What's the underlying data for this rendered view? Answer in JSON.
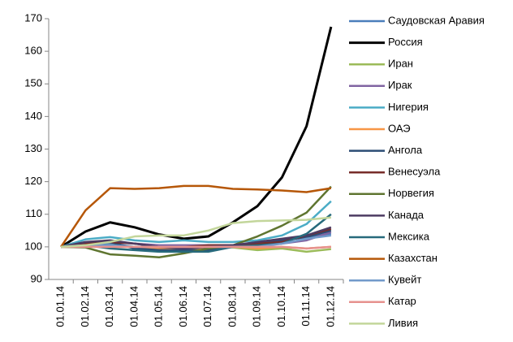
{
  "chart_data": {
    "type": "line",
    "categories": [
      "01.01.14",
      "01.02.14",
      "01.03.14",
      "01.04.14",
      "01.05.14",
      "01.06.14",
      "01.07.14",
      "01.08.14",
      "01.09.14",
      "01.10.14",
      "01.11.14",
      "01.12.14"
    ],
    "ylim": [
      90,
      170
    ],
    "yticks": [
      90,
      100,
      110,
      120,
      130,
      140,
      150,
      160,
      170
    ],
    "grid": false,
    "legend": "right",
    "series": [
      {
        "name": "Саудовская Аравия",
        "color": "#4a7ebb",
        "values": [
          100,
          101,
          101,
          100,
          100,
          100,
          100,
          100,
          101,
          102,
          103,
          104
        ]
      },
      {
        "name": "Россия",
        "color": "#000000",
        "values": [
          100,
          104.7,
          107.5,
          106,
          103.8,
          102.5,
          103.2,
          107.5,
          112.5,
          121.3,
          137,
          167.5
        ]
      },
      {
        "name": "Иран",
        "color": "#9bbb59",
        "values": [
          100,
          100.2,
          100.5,
          100,
          99.5,
          100,
          100,
          99.8,
          99,
          99.5,
          98.5,
          99.3
        ]
      },
      {
        "name": "Ирак",
        "color": "#8064a2",
        "values": [
          100,
          101,
          101.5,
          101,
          100.5,
          100.5,
          100.5,
          100.5,
          100.5,
          101,
          102,
          104.5
        ]
      },
      {
        "name": "Нигерия",
        "color": "#4bacc6",
        "values": [
          100,
          102.3,
          103,
          102,
          101.5,
          102,
          101.5,
          101.5,
          102,
          103.5,
          107,
          114
        ]
      },
      {
        "name": "ОАЭ",
        "color": "#f79646",
        "values": [
          100,
          100,
          100,
          100,
          99.5,
          99.5,
          99.5,
          100,
          99.5,
          100,
          99.5,
          100
        ]
      },
      {
        "name": "Ангола",
        "color": "#2c4d75",
        "values": [
          100,
          101,
          101.5,
          99.5,
          99,
          99,
          99,
          100,
          101,
          102,
          103,
          105
        ]
      },
      {
        "name": "Венесуэла",
        "color": "#772c2a",
        "values": [
          100,
          101,
          101.5,
          101,
          100,
          100,
          100.5,
          100.5,
          101,
          101.5,
          103.5,
          105.5
        ]
      },
      {
        "name": "Норвегия",
        "color": "#5f7530",
        "values": [
          100,
          99.8,
          97.7,
          97.3,
          96.8,
          98,
          99.5,
          100.5,
          103.2,
          106.5,
          110.5,
          118.5
        ]
      },
      {
        "name": "Канада",
        "color": "#4d3b62",
        "values": [
          100,
          101.5,
          102,
          101,
          100,
          99.5,
          100,
          100.5,
          101.5,
          102.5,
          103.5,
          106
        ]
      },
      {
        "name": "Мексика",
        "color": "#276a7c",
        "values": [
          100,
          100.5,
          99.5,
          99,
          98.5,
          98.5,
          98.5,
          100,
          100.5,
          101,
          104,
          110
        ]
      },
      {
        "name": "Казахстан",
        "color": "#b65708",
        "values": [
          100,
          111.2,
          118,
          117.8,
          118,
          118.7,
          118.7,
          117.8,
          117.6,
          117.3,
          116.8,
          118
        ]
      },
      {
        "name": "Кувейт",
        "color": "#729aca",
        "values": [
          100,
          100.5,
          100.5,
          100,
          100,
          100,
          100,
          100,
          100,
          101,
          102.5,
          103.5
        ]
      },
      {
        "name": "Катар",
        "color": "#e6918e",
        "values": [
          100,
          100,
          100,
          100,
          100,
          100,
          100,
          100,
          100,
          100,
          99.5,
          100
        ]
      },
      {
        "name": "Ливия",
        "color": "#c3d69b",
        "values": [
          100,
          100.5,
          101.5,
          103.2,
          103.5,
          103.5,
          105,
          107.3,
          107.9,
          108.1,
          108.3,
          109
        ]
      }
    ]
  }
}
